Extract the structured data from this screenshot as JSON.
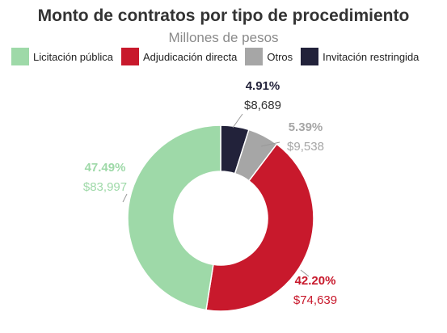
{
  "chart_data": {
    "type": "pie",
    "title": "Monto de contratos por tipo de procedimiento",
    "subtitle": "Millones de pesos",
    "legend_position": "top",
    "donut": true,
    "series": [
      {
        "name": "Licitación pública",
        "value": 83997,
        "value_label": "$83,997",
        "percent_label": "47.49%",
        "color": "#9ed9a8"
      },
      {
        "name": "Adjudicación directa",
        "value": 74639,
        "value_label": "$74,639",
        "percent_label": "42.20%",
        "color": "#c8192c"
      },
      {
        "name": "Otros",
        "value": 9538,
        "value_label": "$9,538",
        "percent_label": "5.39%",
        "color": "#a6a6a6"
      },
      {
        "name": "Invitación restringida",
        "value": 8689,
        "value_label": "$8,689",
        "percent_label": "4.91%",
        "color": "#22223a"
      }
    ]
  }
}
